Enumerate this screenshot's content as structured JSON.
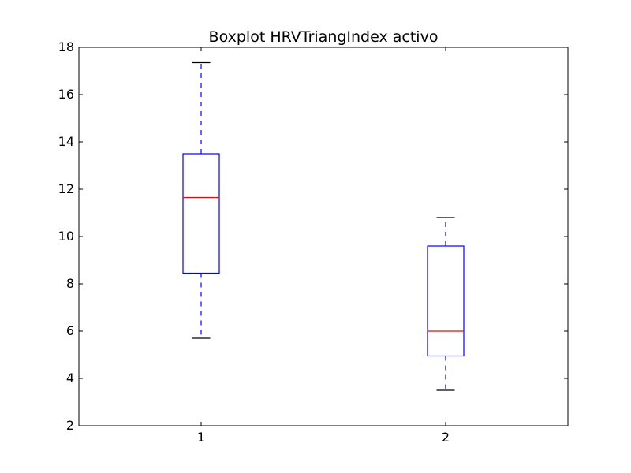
{
  "chart_data": {
    "type": "boxplot",
    "title": "Boxplot HRVTriangIndex activo",
    "xlabel": "",
    "ylabel": "",
    "ylim": [
      2,
      18
    ],
    "yticks": [
      "2",
      "4",
      "6",
      "8",
      "10",
      "12",
      "14",
      "16",
      "18"
    ],
    "categories": [
      "1",
      "2"
    ],
    "boxes": [
      {
        "category": "1",
        "whisker_low": 5.7,
        "q1": 8.45,
        "median": 11.65,
        "q3": 13.5,
        "whisker_high": 17.35
      },
      {
        "category": "2",
        "whisker_low": 3.5,
        "q1": 4.95,
        "median": 6.0,
        "q3": 9.6,
        "whisker_high": 10.8
      }
    ],
    "colors": {
      "box": "#0000ff",
      "median": "#ff0000",
      "whisker": "#0000ff",
      "cap": "#000000"
    },
    "grid": false,
    "legend": "none"
  }
}
